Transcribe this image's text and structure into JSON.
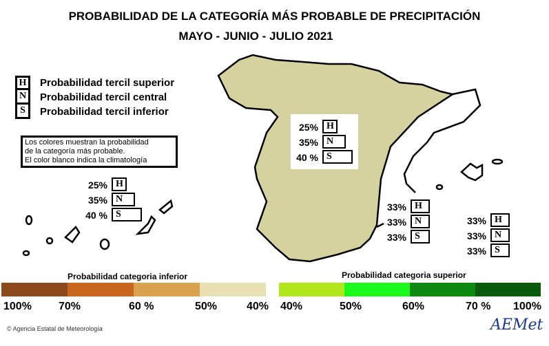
{
  "title_line1": "PROBABILIDAD DE LA  CATEGORÍA MÁS PROBABLE DE PRECIPITACIÓN",
  "title_line2": "MAYO - JUNIO - JULIO 2021",
  "legend": [
    {
      "letter": "H",
      "text": "Probabilidad  tercil superior"
    },
    {
      "letter": "N",
      "text": "Probabilidad  tercil central"
    },
    {
      "letter": "S",
      "text": "Probabilidad  tercil inferior"
    }
  ],
  "note": [
    "Los colores muestran la probabilidad",
    "de la categoría más probable.",
    "El color blanco indica la climatología"
  ],
  "regions": {
    "peninsula": {
      "H": "25%",
      "N": "35%",
      "S": "40 %",
      "fill": "#d6d2a0"
    },
    "canarias": {
      "H": "25%",
      "N": "35%",
      "S": "40 %"
    },
    "mediterraneo": {
      "H": "33%",
      "N": "33%",
      "S": "33%"
    },
    "baleares": {
      "H": "33%",
      "N": "33%",
      "S": "33%"
    }
  },
  "scale_inferior": {
    "title": "Probabilidad categoria inferior",
    "colors": [
      "#8c4a1c",
      "#c8661e",
      "#d9a24e",
      "#e6e0b2"
    ],
    "ticks": [
      "100%",
      "70%",
      "60 %",
      "50%",
      "40%"
    ]
  },
  "scale_superior": {
    "title": "Probabilidad categoria superior",
    "colors": [
      "#b2e61c",
      "#1cfa1c",
      "#0c8a10",
      "#0a5a0c"
    ],
    "ticks": [
      "40%",
      "50%",
      "60%",
      "70 %",
      "100%"
    ]
  },
  "credit": "© Agencia Estatal de Meteorología",
  "logo_text": "AEMet"
}
